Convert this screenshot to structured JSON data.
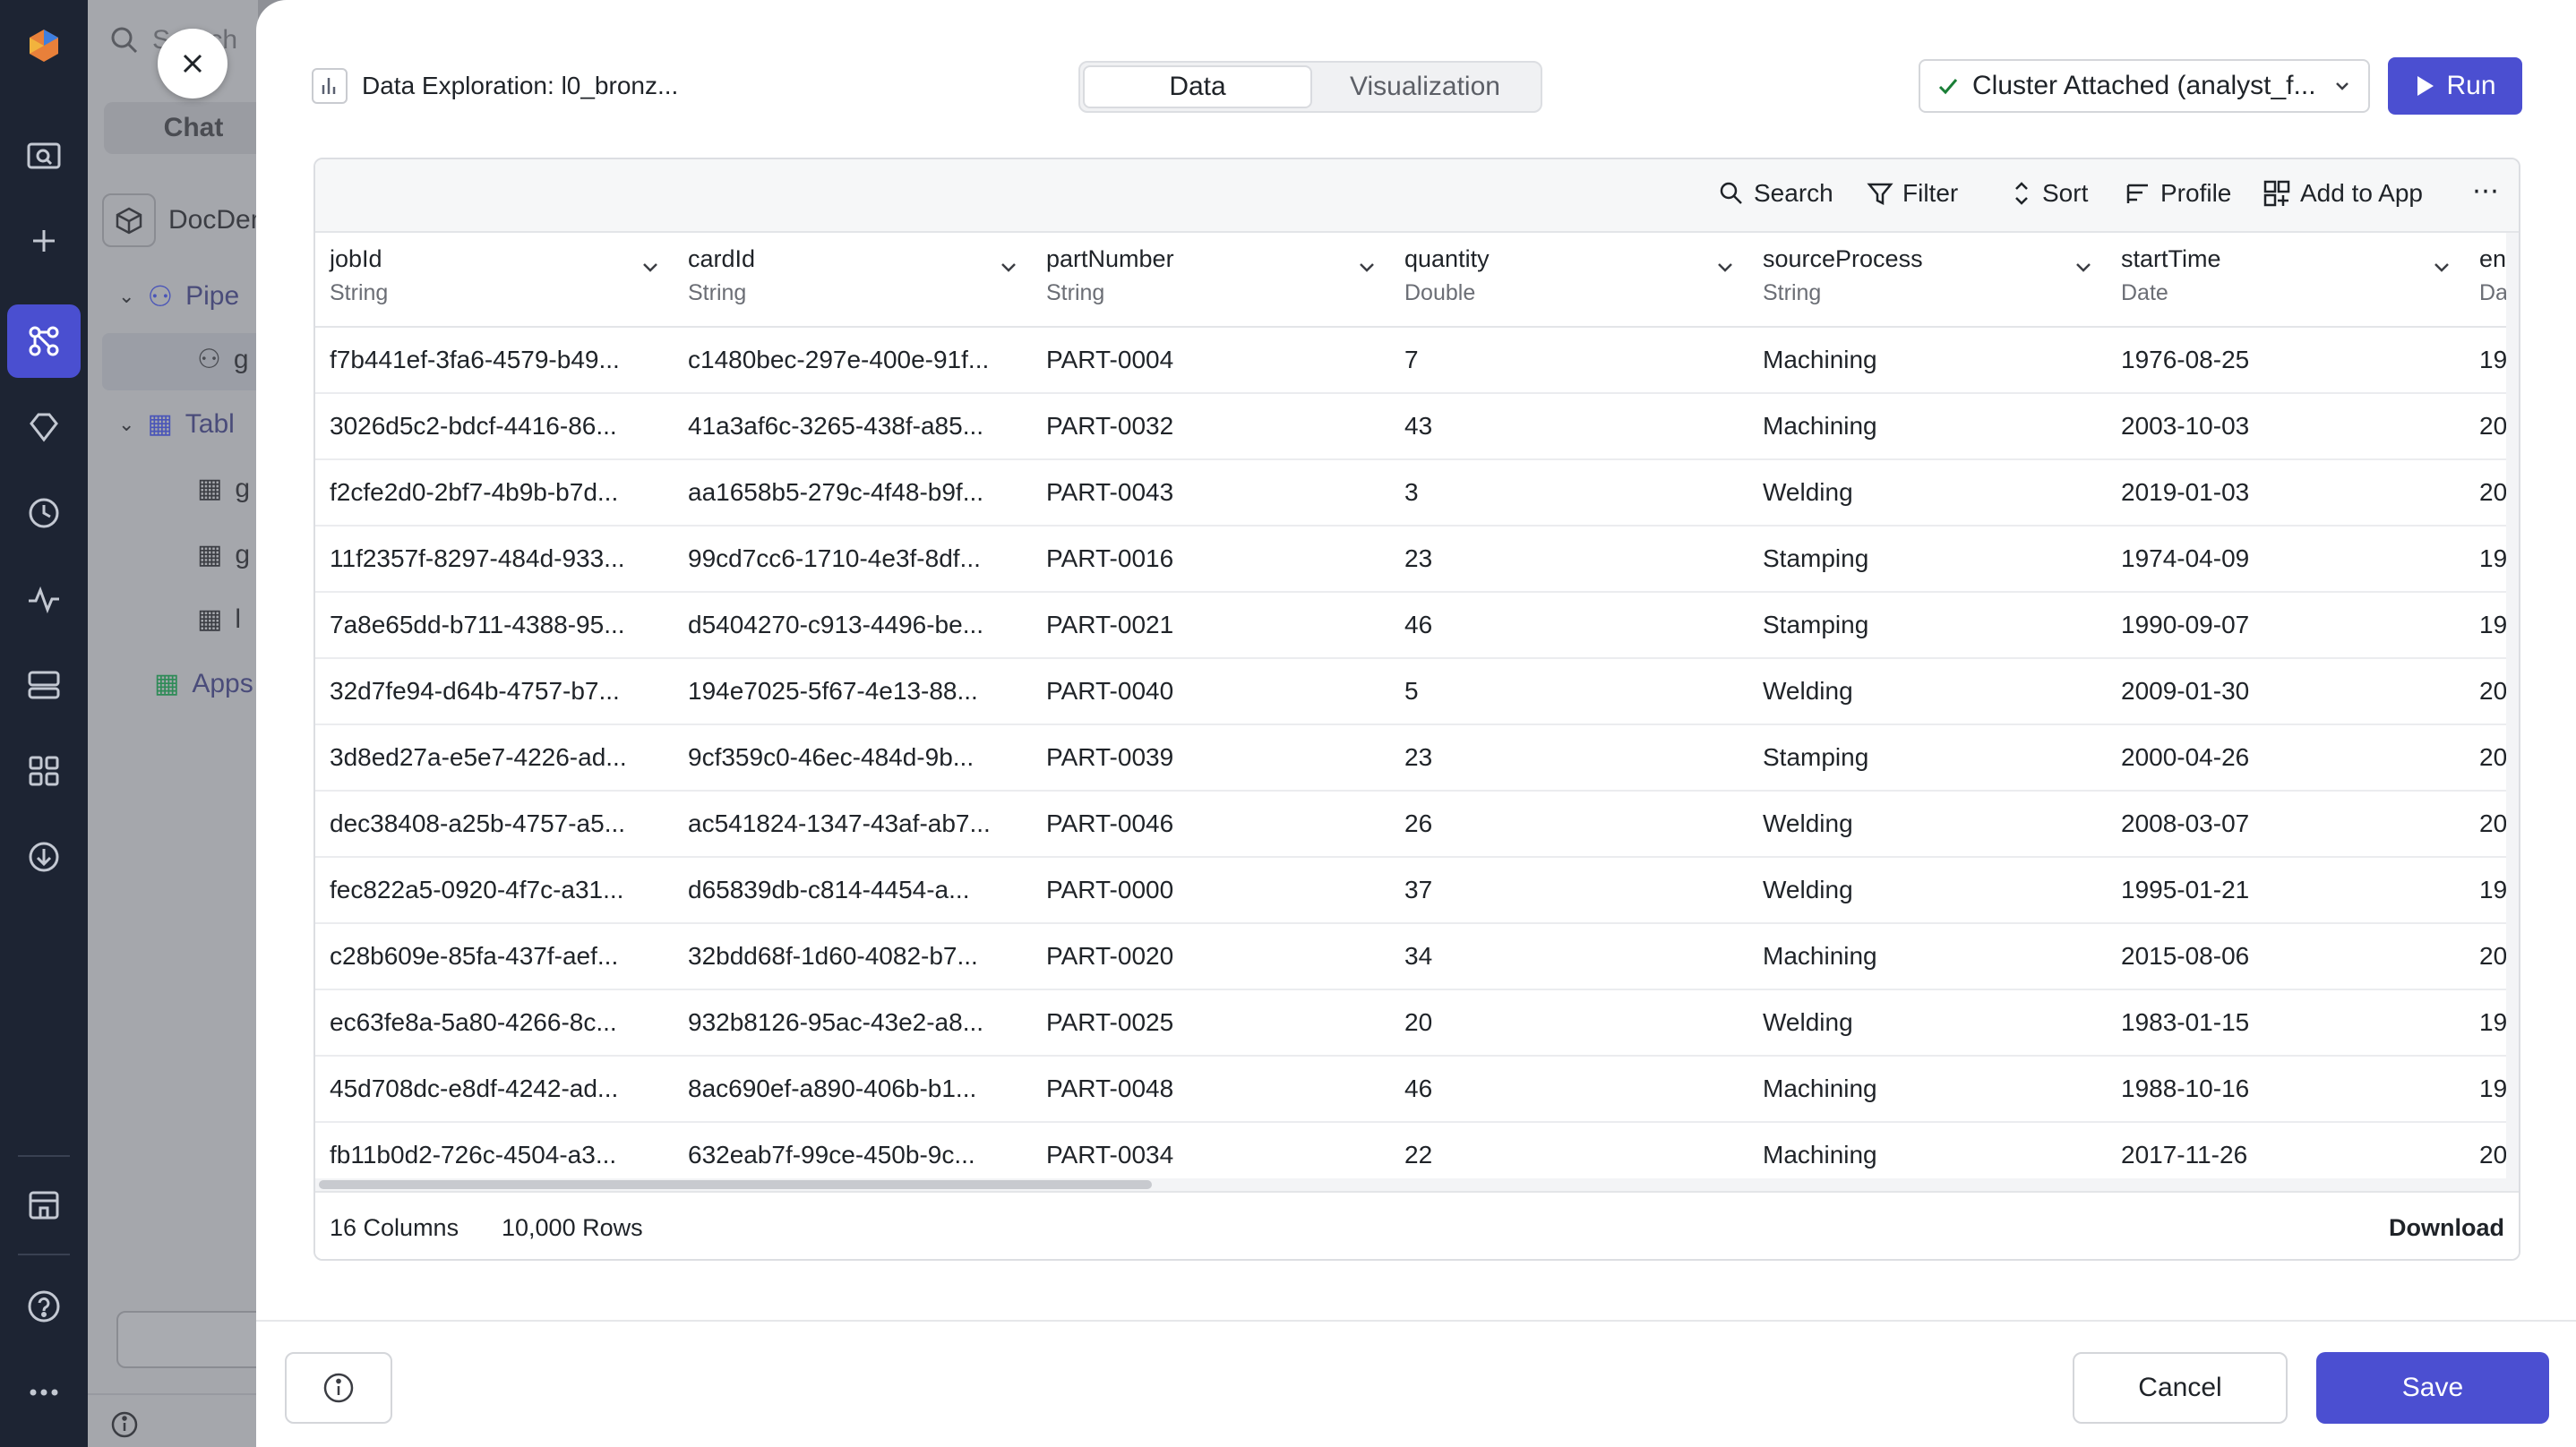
{
  "background_app": {
    "search_placeholder": "Search",
    "chat_tab": "Chat",
    "tree": {
      "project": "DocDem",
      "pipelines": "Pipe",
      "pipeline_item": "g",
      "tables": "Tabl",
      "table_items": [
        "g",
        "g",
        "l"
      ],
      "apps": "Apps"
    }
  },
  "modal": {
    "title": "Data Exploration: l0_bronz...",
    "tabs": [
      {
        "label": "Data",
        "active": true
      },
      {
        "label": "Visualization",
        "active": false
      }
    ],
    "cluster_status": "Cluster Attached (analyst_f...",
    "run_label": "Run",
    "toolbar": {
      "search": "Search",
      "filter": "Filter",
      "sort": "Sort",
      "profile": "Profile",
      "add_to_app": "Add to App",
      "more": "⋯"
    },
    "columns": [
      {
        "name": "jobId",
        "type": "String"
      },
      {
        "name": "cardId",
        "type": "String"
      },
      {
        "name": "partNumber",
        "type": "String"
      },
      {
        "name": "quantity",
        "type": "Double"
      },
      {
        "name": "sourceProcess",
        "type": "String"
      },
      {
        "name": "startTime",
        "type": "Date"
      },
      {
        "name": "en",
        "type": "Da"
      }
    ],
    "rows": [
      [
        "f7b441ef-3fa6-4579-b49...",
        "c1480bec-297e-400e-91f...",
        "PART-0004",
        "7",
        "Machining",
        "1976-08-25",
        "19"
      ],
      [
        "3026d5c2-bdcf-4416-86...",
        "41a3af6c-3265-438f-a85...",
        "PART-0032",
        "43",
        "Machining",
        "2003-10-03",
        "20"
      ],
      [
        "f2cfe2d0-2bf7-4b9b-b7d...",
        "aa1658b5-279c-4f48-b9f...",
        "PART-0043",
        "3",
        "Welding",
        "2019-01-03",
        "20"
      ],
      [
        "11f2357f-8297-484d-933...",
        "99cd7cc6-1710-4e3f-8df...",
        "PART-0016",
        "23",
        "Stamping",
        "1974-04-09",
        "19"
      ],
      [
        "7a8e65dd-b711-4388-95...",
        "d5404270-c913-4496-be...",
        "PART-0021",
        "46",
        "Stamping",
        "1990-09-07",
        "19"
      ],
      [
        "32d7fe94-d64b-4757-b7...",
        "194e7025-5f67-4e13-88...",
        "PART-0040",
        "5",
        "Welding",
        "2009-01-30",
        "20"
      ],
      [
        "3d8ed27a-e5e7-4226-ad...",
        "9cf359c0-46ec-484d-9b...",
        "PART-0039",
        "23",
        "Stamping",
        "2000-04-26",
        "20"
      ],
      [
        "dec38408-a25b-4757-a5...",
        "ac541824-1347-43af-ab7...",
        "PART-0046",
        "26",
        "Welding",
        "2008-03-07",
        "20"
      ],
      [
        "fec822a5-0920-4f7c-a31...",
        "d65839db-c814-4454-a...",
        "PART-0000",
        "37",
        "Welding",
        "1995-01-21",
        "19"
      ],
      [
        "c28b609e-85fa-437f-aef...",
        "32bdd68f-1d60-4082-b7...",
        "PART-0020",
        "34",
        "Machining",
        "2015-08-06",
        "20"
      ],
      [
        "ec63fe8a-5a80-4266-8c...",
        "932b8126-95ac-43e2-a8...",
        "PART-0025",
        "20",
        "Welding",
        "1983-01-15",
        "19"
      ],
      [
        "45d708dc-e8df-4242-ad...",
        "8ac690ef-a890-406b-b1...",
        "PART-0048",
        "46",
        "Machining",
        "1988-10-16",
        "19"
      ],
      [
        "fb11b0d2-726c-4504-a3...",
        "632eab7f-99ce-450b-9c...",
        "PART-0034",
        "22",
        "Machining",
        "2017-11-26",
        "20"
      ]
    ],
    "footer": {
      "columns_count": "16 Columns",
      "rows_count": "10,000 Rows",
      "download": "Download"
    },
    "cancel_label": "Cancel",
    "save_label": "Save"
  },
  "colors": {
    "accent": "#4b4fd1",
    "rail_bg": "#1d2433",
    "success": "#1a7f37"
  }
}
